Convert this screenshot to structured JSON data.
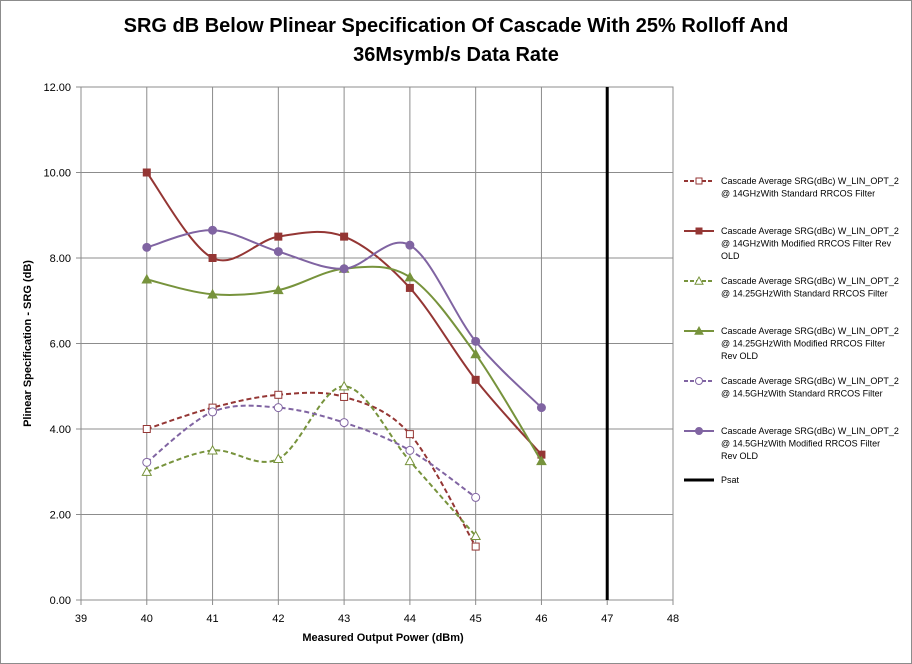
{
  "chart_data": {
    "type": "line",
    "title_lines": [
      "SRG dB Below Plinear Specification Of Cascade With 25% Rolloff And",
      "36Msymb/s Data Rate"
    ],
    "xlabel": "Measured Output Power (dBm)",
    "ylabel": "Plinear Specification  - SRG (dB)",
    "xlim": [
      39,
      48
    ],
    "ylim": [
      0,
      12
    ],
    "xticks": [
      "39",
      "40",
      "41",
      "42",
      "43",
      "44",
      "45",
      "46",
      "47",
      "48"
    ],
    "yticks": [
      "0.00",
      "2.00",
      "4.00",
      "6.00",
      "8.00",
      "10.00",
      "12.00"
    ],
    "grid": true,
    "legend_position": "right",
    "series": [
      {
        "name_lines": [
          "Cascade Average SRG(dBc) W_LIN_OPT_2",
          "@ 14GHzWith Standard RRCOS Filter"
        ],
        "color": "#943634",
        "dash": true,
        "marker": "square",
        "filled": false,
        "x": [
          40,
          41,
          42,
          43,
          44,
          45
        ],
        "y": [
          4.0,
          4.5,
          4.8,
          4.75,
          3.88,
          1.25
        ]
      },
      {
        "name_lines": [
          "Cascade Average SRG(dBc) W_LIN_OPT_2",
          "@ 14GHzWith Modified RRCOS Filter Rev",
          "OLD"
        ],
        "color": "#943634",
        "dash": false,
        "marker": "square",
        "filled": true,
        "x": [
          40,
          41,
          42,
          43,
          44,
          45,
          46
        ],
        "y": [
          10.0,
          8.0,
          8.5,
          8.5,
          7.3,
          5.15,
          3.4
        ]
      },
      {
        "name_lines": [
          "Cascade Average SRG(dBc) W_LIN_OPT_2",
          "@ 14.25GHzWith Standard RRCOS Filter"
        ],
        "color": "#77933c",
        "dash": true,
        "marker": "triangle",
        "filled": false,
        "x": [
          40,
          41,
          42,
          43,
          44,
          45
        ],
        "y": [
          3.0,
          3.5,
          3.3,
          5.0,
          3.25,
          1.5
        ]
      },
      {
        "name_lines": [
          "Cascade Average SRG(dBc) W_LIN_OPT_2",
          "@ 14.25GHzWith Modified RRCOS Filter",
          "Rev OLD"
        ],
        "color": "#77933c",
        "dash": false,
        "marker": "triangle",
        "filled": true,
        "x": [
          40,
          41,
          42,
          43,
          44,
          45,
          46
        ],
        "y": [
          7.5,
          7.15,
          7.25,
          7.75,
          7.55,
          5.75,
          3.25
        ]
      },
      {
        "name_lines": [
          "Cascade Average SRG(dBc) W_LIN_OPT_2",
          "@ 14.5GHzWith Standard RRCOS Filter"
        ],
        "color": "#8064a2",
        "dash": true,
        "marker": "circle",
        "filled": false,
        "x": [
          40,
          41,
          42,
          43,
          44,
          45
        ],
        "y": [
          3.22,
          4.4,
          4.5,
          4.15,
          3.5,
          2.4
        ]
      },
      {
        "name_lines": [
          "Cascade Average SRG(dBc) W_LIN_OPT_2",
          "@ 14.5GHzWith Modified RRCOS Filter",
          "Rev OLD"
        ],
        "color": "#8064a2",
        "dash": false,
        "marker": "circle",
        "filled": true,
        "x": [
          40,
          41,
          42,
          43,
          44,
          45,
          46
        ],
        "y": [
          8.25,
          8.65,
          8.15,
          7.75,
          8.3,
          6.05,
          4.5
        ]
      }
    ],
    "psat": {
      "name": "Psat",
      "x": 47,
      "color": "#000000"
    }
  }
}
